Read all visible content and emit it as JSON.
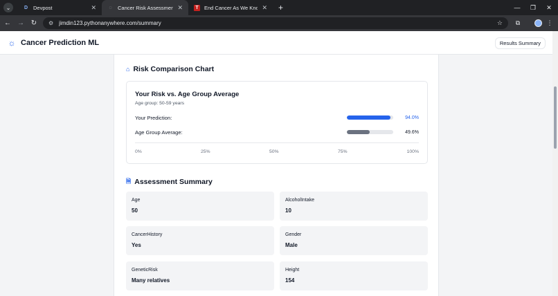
{
  "browser": {
    "tabs": [
      {
        "label": "Devpost",
        "favicon": "D",
        "active": false
      },
      {
        "label": "Cancer Risk Assessment Results",
        "favicon": "◌",
        "active": true
      },
      {
        "label": "End Cancer As We Know It | Am",
        "favicon": "T",
        "active": false
      }
    ],
    "url": "jimdin123.pythonanywhere.com/summary"
  },
  "navbar": {
    "brand": "Cancer Prediction ML",
    "link": "Results Summary"
  },
  "chart_section": {
    "title": "Risk Comparison Chart",
    "chart_title": "Your Risk vs. Age Group Average",
    "subtitle": "Age group: 50-59 years"
  },
  "chart_data": {
    "type": "bar",
    "categories": [
      "Your Prediction:",
      "Age Group Average:"
    ],
    "values": [
      94.0,
      49.6
    ],
    "value_labels": [
      "94.0%",
      "49.6%"
    ],
    "colors": [
      "#2563eb",
      "#6b7280"
    ],
    "xlim": [
      0,
      100
    ],
    "ticks": [
      "0%",
      "25%",
      "50%",
      "75%",
      "100%"
    ]
  },
  "summary": {
    "title": "Assessment Summary",
    "items": [
      {
        "key": "Age",
        "value": "50"
      },
      {
        "key": "AlcoholIntake",
        "value": "10"
      },
      {
        "key": "CancerHistory",
        "value": "Yes"
      },
      {
        "key": "Gender",
        "value": "Male"
      },
      {
        "key": "GeneticRisk",
        "value": "Many relatives"
      },
      {
        "key": "Height",
        "value": "154"
      }
    ]
  }
}
